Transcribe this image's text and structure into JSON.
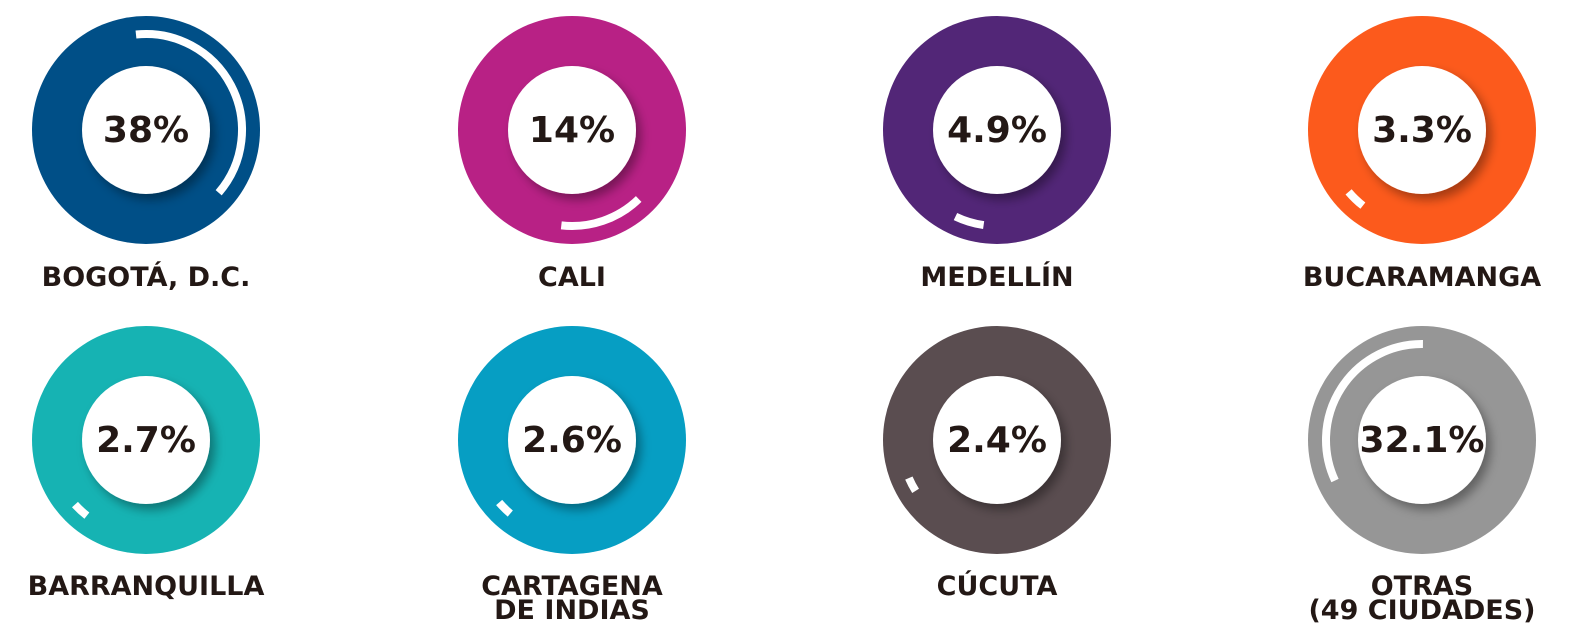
{
  "chart_data": {
    "type": "gauge",
    "categories": [
      "BOGOTÁ, D.C.",
      "CALI",
      "MEDELLÍN",
      "BUCARAMANGA",
      "BARRANQUILLA",
      "CARTAGENA\nDE INDIAS",
      "CÚCUTA",
      "OTRAS\n(49 CIUDADES)"
    ],
    "values": [
      38,
      14,
      4.9,
      3.3,
      2.7,
      2.6,
      2.4,
      32.1
    ],
    "value_labels": [
      "38%",
      "14%",
      "4.9%",
      "3.3%",
      "2.7%",
      "2.6%",
      "2.4%",
      "32.1%"
    ],
    "colors": [
      "#004f87",
      "#b82185",
      "#522677",
      "#fc5a1c",
      "#16b3b3",
      "#069ec3",
      "#5a4d50",
      "#969696"
    ]
  }
}
